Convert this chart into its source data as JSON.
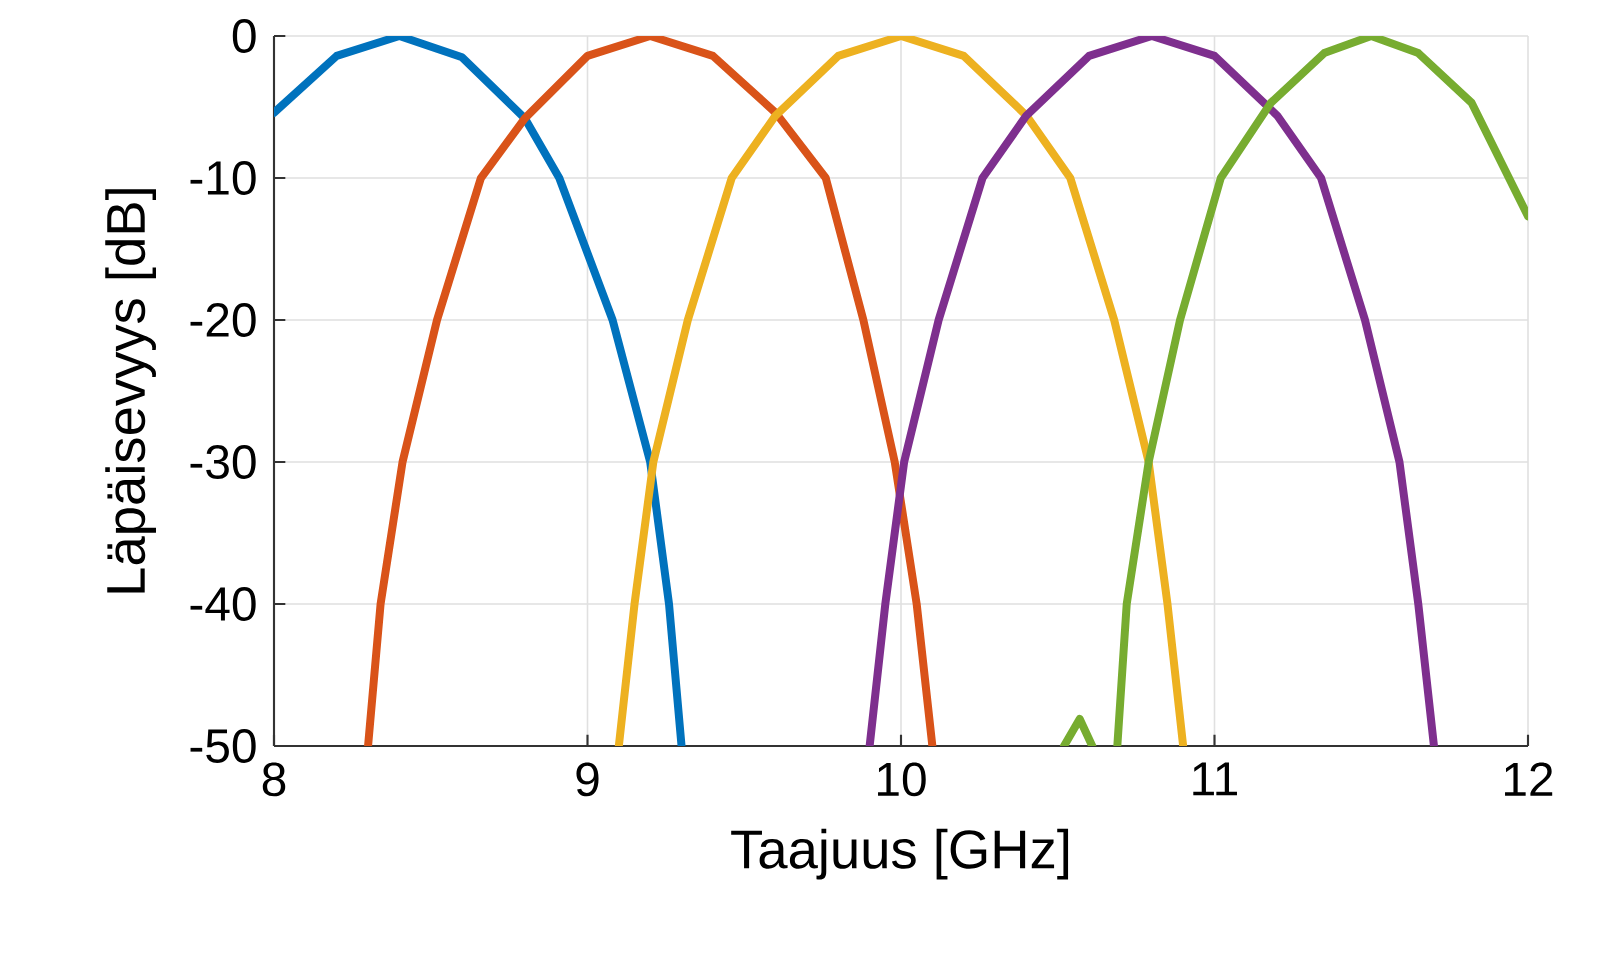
{
  "chart_data": {
    "type": "line",
    "xlabel": "Taajuus [GHz]",
    "ylabel": "Läpäisevyys [dB]",
    "xlim": [
      8,
      12
    ],
    "ylim": [
      -50,
      0
    ],
    "xticks": [
      8,
      9,
      10,
      11,
      12
    ],
    "yticks": [
      -50,
      -40,
      -30,
      -20,
      -10,
      0
    ],
    "grid": true,
    "line_style": "solid",
    "marker": "none",
    "series": [
      {
        "color": "#0072bd",
        "x": [
          8,
          8.2,
          8.4,
          8.6,
          8.8,
          8.91,
          9.08,
          9.2,
          9.26,
          9.3
        ],
        "values": [
          -5.4,
          -1.4,
          0,
          -1.5,
          -5.8,
          -10,
          -20,
          -30,
          -40,
          -50
        ]
      },
      {
        "color": "#d95319",
        "x": [
          8.3,
          8.34,
          8.41,
          8.52,
          8.66,
          8.8,
          9.0,
          9.2,
          9.4,
          9.6,
          9.76,
          9.88,
          9.98,
          10.05,
          10.1
        ],
        "values": [
          -50,
          -40,
          -30,
          -20,
          -10,
          -5.8,
          -1.4,
          0,
          -1.4,
          -5.4,
          -10,
          -20,
          -30,
          -40,
          -50
        ]
      },
      {
        "color": "#edb120",
        "x": [
          9.1,
          9.15,
          9.21,
          9.32,
          9.46,
          9.6,
          9.8,
          10,
          10.2,
          10.4,
          10.54,
          10.68,
          10.79,
          10.85,
          10.9
        ],
        "values": [
          -50,
          -40,
          -30,
          -20,
          -10,
          -5.6,
          -1.4,
          0,
          -1.4,
          -5.6,
          -10,
          -20,
          -30,
          -40,
          -50
        ]
      },
      {
        "color": "#7e2f8e",
        "x": [
          9.9,
          9.95,
          10.01,
          10.12,
          10.26,
          10.4,
          10.6,
          10.8,
          11,
          11.2,
          11.34,
          11.48,
          11.59,
          11.65,
          11.7
        ],
        "values": [
          -50,
          -40,
          -30,
          -20,
          -10,
          -5.6,
          -1.4,
          0,
          -1.4,
          -5.6,
          -10,
          -20,
          -30,
          -40,
          -50
        ]
      },
      {
        "color": "#77ac30",
        "x": [
          10.52,
          10.57,
          10.61,
          10.65,
          10.69,
          10.72,
          10.79,
          10.89,
          11.02,
          11.18,
          11.35,
          11.5,
          11.65,
          11.82,
          12
        ],
        "values": [
          -50,
          -48.1,
          -50,
          null,
          -50,
          -40,
          -30,
          -20,
          -10,
          -4.7,
          -1.2,
          0,
          -1.2,
          -4.7,
          -12.7
        ]
      }
    ]
  }
}
